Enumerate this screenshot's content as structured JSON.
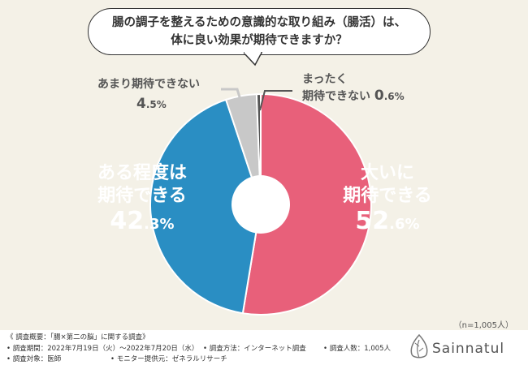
{
  "title": {
    "line1": "腸の調子を整えるための意識的な取り組み（腸活）は、",
    "line2": "体に良い効果が期待できますか？"
  },
  "chart_data": {
    "type": "pie",
    "donut": true,
    "slices": [
      {
        "label_line1": "大いに",
        "label_line2": "期待できる",
        "value": 52.6,
        "value_int": "52",
        "value_dec": ".6%",
        "color": "#e8607a"
      },
      {
        "label_line1": "ある程度は",
        "label_line2": "期待できる",
        "value": 42.3,
        "value_int": "42",
        "value_dec": ".3%",
        "color": "#2a8ec3"
      },
      {
        "label_line1": "あまり期待できない",
        "label_line2": "",
        "value": 4.5,
        "value_int": "4",
        "value_dec": ".5%",
        "color": "#c8c8c8"
      },
      {
        "label_line1": "まったく",
        "label_line2": "期待できない",
        "value": 0.6,
        "value_int": "0",
        "value_dec": ".6%",
        "color": "#555555"
      }
    ],
    "n_note": "（n=1,005人）"
  },
  "colors": {
    "background": "#f4f1e7",
    "footer": "#ffffff"
  },
  "footer": {
    "heading": "《 調査概要：「腸×第二の脳」に関する調査》",
    "period": "• 調査期間：2022年7月19日（火）〜2022年7月20日（水）",
    "method": "• 調査方法：インターネット調査",
    "count": "• 調査人数：1,005人",
    "target": "• 調査対象：医師",
    "provider": "• モニター提供元：ゼネラルリサーチ"
  },
  "logo": {
    "text": "Sainnatul",
    "icon": "leaf-drop-icon"
  }
}
